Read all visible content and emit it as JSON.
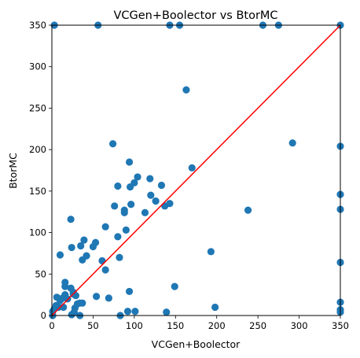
{
  "chart_data": {
    "type": "scatter",
    "title": "VCGen+Boolector vs BtorMC",
    "xlabel": "VCGen+Boolector",
    "ylabel": "BtorMC",
    "xlim": [
      0,
      350
    ],
    "ylim": [
      0,
      350
    ],
    "xticks": [
      0,
      50,
      100,
      150,
      200,
      250,
      300,
      350
    ],
    "yticks": [
      0,
      50,
      100,
      150,
      200,
      250,
      300,
      350
    ],
    "grid": false,
    "point_color": "#1f77b4",
    "reference_line": {
      "name": "y = x",
      "color": "#ff0000",
      "from": [
        0,
        0
      ],
      "to": [
        350,
        350
      ]
    },
    "points": [
      [
        3,
        350
      ],
      [
        56,
        350
      ],
      [
        143,
        350
      ],
      [
        155,
        350
      ],
      [
        256,
        350
      ],
      [
        275,
        350
      ],
      [
        350,
        350
      ],
      [
        163,
        272
      ],
      [
        74,
        207
      ],
      [
        292,
        208
      ],
      [
        94,
        185
      ],
      [
        170,
        178
      ],
      [
        350,
        204
      ],
      [
        104,
        167
      ],
      [
        119,
        165
      ],
      [
        100,
        160
      ],
      [
        133,
        157
      ],
      [
        80,
        156
      ],
      [
        95,
        155
      ],
      [
        120,
        145
      ],
      [
        350,
        146
      ],
      [
        126,
        138
      ],
      [
        143,
        135
      ],
      [
        137,
        132
      ],
      [
        76,
        132
      ],
      [
        96,
        134
      ],
      [
        88,
        127
      ],
      [
        113,
        124
      ],
      [
        88,
        124
      ],
      [
        238,
        127
      ],
      [
        350,
        128
      ],
      [
        23,
        116
      ],
      [
        65,
        107
      ],
      [
        90,
        103
      ],
      [
        53,
        88
      ],
      [
        80,
        95
      ],
      [
        39,
        91
      ],
      [
        50,
        83
      ],
      [
        24,
        82
      ],
      [
        35,
        84
      ],
      [
        10,
        73
      ],
      [
        42,
        72
      ],
      [
        37,
        67
      ],
      [
        82,
        70
      ],
      [
        61,
        66
      ],
      [
        193,
        77
      ],
      [
        350,
        64
      ],
      [
        65,
        55
      ],
      [
        16,
        40
      ],
      [
        16,
        35
      ],
      [
        26,
        26
      ],
      [
        94,
        29
      ],
      [
        23,
        33
      ],
      [
        6,
        22
      ],
      [
        13,
        21
      ],
      [
        16,
        25
      ],
      [
        29,
        24
      ],
      [
        19,
        20
      ],
      [
        10,
        18
      ],
      [
        26,
        28
      ],
      [
        54,
        23
      ],
      [
        69,
        21
      ],
      [
        5,
        12
      ],
      [
        3,
        8
      ],
      [
        1,
        5
      ],
      [
        28,
        9
      ],
      [
        14,
        10
      ],
      [
        8,
        10
      ],
      [
        31,
        14
      ],
      [
        37,
        15
      ],
      [
        34,
        15
      ],
      [
        350,
        16
      ],
      [
        149,
        35
      ],
      [
        198,
        10
      ],
      [
        350,
        7
      ],
      [
        350,
        4
      ],
      [
        27,
        4
      ],
      [
        24,
        1
      ],
      [
        92,
        5
      ],
      [
        101,
        5
      ],
      [
        139,
        4
      ],
      [
        83,
        0
      ],
      [
        34,
        0
      ],
      [
        1,
        0
      ]
    ]
  }
}
